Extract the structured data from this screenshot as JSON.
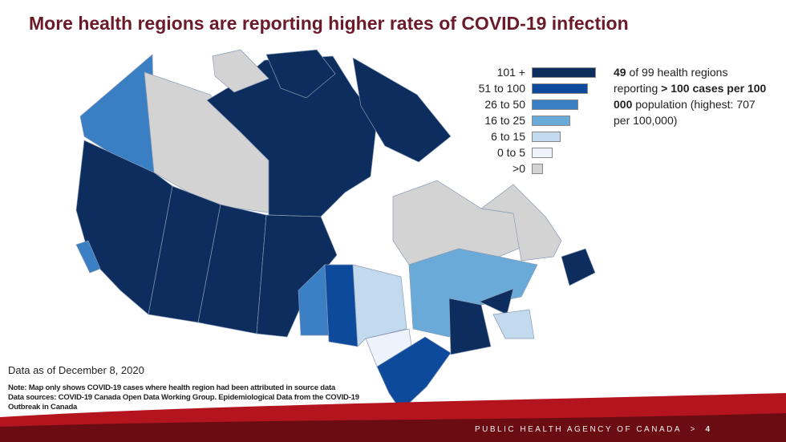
{
  "title": "More health regions are reporting higher rates of COVID-19 infection",
  "legend": {
    "items": [
      {
        "label": "101 +",
        "color": "#0d2d5e"
      },
      {
        "label": "51 to 100",
        "color": "#0e4a9c"
      },
      {
        "label": "26 to 50",
        "color": "#3a7fc4"
      },
      {
        "label": "16 to 25",
        "color": "#6aaad8"
      },
      {
        "label": "6 to 15",
        "color": "#c3daee"
      },
      {
        "label": "0 to 5",
        "color": "#eef2fa"
      },
      {
        "label": ">0",
        "color": "#d3d3d3"
      }
    ]
  },
  "summary": {
    "count": "49",
    "text1": " of 99 health regions reporting ",
    "emphasis": "> 100 cases per 100 000",
    "text2": " population (highest: 707 per 100,000)"
  },
  "date_note": "Data as of December 8, 2020",
  "notes": [
    "Note: Map only shows COVID-19 cases where health region had been attributed in source data",
    "Data sources: COVID-19 Canada Open Data Working Group. Epidemiological Data from the COVID-19 Outbreak in Canada"
  ],
  "footer": {
    "agency": "PUBLIC HEALTH AGENCY OF CANADA",
    "separator": ">",
    "page": "4"
  }
}
